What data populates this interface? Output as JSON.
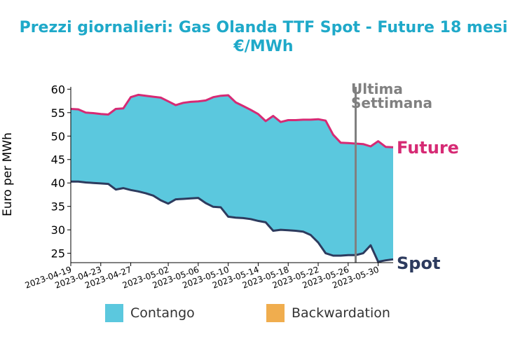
{
  "chart_data": {
    "type": "area",
    "title": "Prezzi giornalieri: Gas Olanda TTF Spot - Future 18 mesi",
    "subtitle": "€/MWh",
    "ylabel": "Euro per MWh",
    "xlabel": "",
    "ylim": [
      23,
      60.5
    ],
    "yticks": [
      25,
      30,
      35,
      40,
      45,
      50,
      55,
      60
    ],
    "xticks": [
      "2023-04-19",
      "2023-04-23",
      "2023-04-27",
      "2023-05-02",
      "2023-05-06",
      "2023-05-10",
      "2023-05-14",
      "2023-05-18",
      "2023-05-22",
      "2023-05-26",
      "2023-05-30"
    ],
    "grid": false,
    "dates": [
      "2023-04-19",
      "2023-04-20",
      "2023-04-21",
      "2023-04-22",
      "2023-04-23",
      "2023-04-24",
      "2023-04-25",
      "2023-04-26",
      "2023-04-27",
      "2023-04-28",
      "2023-04-29",
      "2023-04-30",
      "2023-05-01",
      "2023-05-02",
      "2023-05-03",
      "2023-05-04",
      "2023-05-05",
      "2023-05-06",
      "2023-05-07",
      "2023-05-08",
      "2023-05-09",
      "2023-05-10",
      "2023-05-11",
      "2023-05-12",
      "2023-05-13",
      "2023-05-14",
      "2023-05-15",
      "2023-05-16",
      "2023-05-17",
      "2023-05-18",
      "2023-05-19",
      "2023-05-20",
      "2023-05-21",
      "2023-05-22",
      "2023-05-23",
      "2023-05-24",
      "2023-05-25",
      "2023-05-26",
      "2023-05-27",
      "2023-05-28",
      "2023-05-29",
      "2023-05-30",
      "2023-05-31",
      "2023-06-01"
    ],
    "series": [
      {
        "name": "Future",
        "color": "#d62a74",
        "values": [
          55.8,
          55.7,
          55.0,
          54.9,
          54.7,
          54.6,
          55.8,
          55.9,
          58.3,
          58.8,
          58.6,
          58.4,
          58.2,
          57.4,
          56.6,
          57.1,
          57.3,
          57.4,
          57.6,
          58.3,
          58.6,
          58.7,
          57.2,
          56.4,
          55.6,
          54.7,
          53.2,
          54.3,
          53.0,
          53.4,
          53.4,
          53.5,
          53.5,
          53.6,
          53.3,
          50.3,
          48.6,
          48.5,
          48.4,
          48.3,
          47.8,
          48.9,
          47.7,
          47.6
        ]
      },
      {
        "name": "Spot",
        "color": "#2d3b5e",
        "values": [
          40.3,
          40.3,
          40.1,
          40.0,
          39.9,
          39.8,
          38.6,
          38.9,
          38.5,
          38.2,
          37.8,
          37.3,
          36.3,
          35.6,
          36.5,
          36.6,
          36.7,
          36.8,
          35.7,
          34.9,
          34.8,
          32.8,
          32.6,
          32.5,
          32.3,
          31.9,
          31.6,
          29.8,
          30.0,
          29.9,
          29.8,
          29.6,
          28.9,
          27.3,
          25.0,
          24.5,
          24.5,
          24.6,
          24.6,
          25.0,
          26.7,
          23.2,
          23.5,
          23.7
        ]
      }
    ],
    "fills": {
      "contango": "#5bc8de",
      "backwardation": "#f0ad4e"
    },
    "legend": {
      "placement": "bottom",
      "items": [
        {
          "label": "Contango",
          "color": "#5bc8de"
        },
        {
          "label": "Backwardation",
          "color": "#f0ad4e"
        }
      ]
    },
    "annotation": {
      "line1": "Ultima",
      "line2": "Settimana",
      "date": "2023-05-27",
      "color": "#808080"
    },
    "end_labels": {
      "future": "Future",
      "spot": "Spot"
    },
    "title_color": "#1fa9c9"
  }
}
